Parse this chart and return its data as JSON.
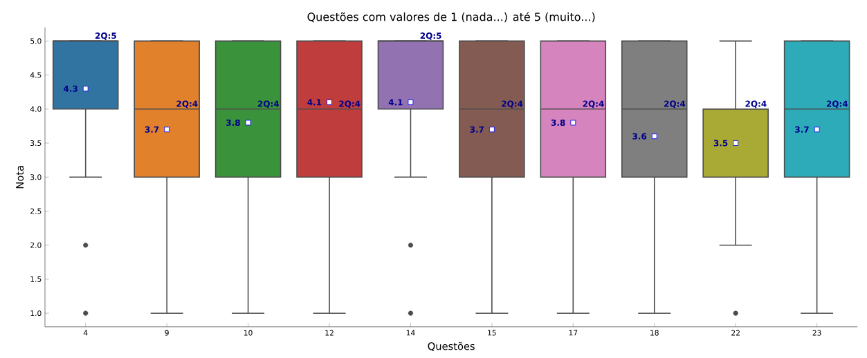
{
  "chart_data": {
    "type": "box",
    "title": "Questões com valores de 1 (nada...) até 5 (muito...)",
    "xlabel": "Questões",
    "ylabel": "Nota",
    "categories": [
      "4",
      "9",
      "10",
      "12",
      "14",
      "15",
      "17",
      "18",
      "22",
      "23"
    ],
    "colors": [
      "#3274a1",
      "#e1812c",
      "#3a923a",
      "#c03d3e",
      "#9372b2",
      "#845b53",
      "#d684bd",
      "#7f7f7f",
      "#a9aa35",
      "#2eabb8"
    ],
    "boxes": [
      {
        "low": 3,
        "q1": 4,
        "median": 5,
        "q3": 5,
        "high": 5,
        "mean": 4.3,
        "outliers": [
          2,
          1
        ]
      },
      {
        "low": 1,
        "q1": 3,
        "median": 4,
        "q3": 5,
        "high": 5,
        "mean": 3.7
      },
      {
        "low": 1,
        "q1": 3,
        "median": 4,
        "q3": 5,
        "high": 5,
        "mean": 3.8
      },
      {
        "low": 1,
        "q1": 3,
        "median": 4,
        "q3": 5,
        "high": 5,
        "mean": 4.1
      },
      {
        "low": 3,
        "q1": 4,
        "median": 5,
        "q3": 5,
        "high": 5,
        "mean": 4.1,
        "outliers": [
          2,
          1
        ]
      },
      {
        "low": 1,
        "q1": 3,
        "median": 4,
        "q3": 5,
        "high": 5,
        "mean": 3.7
      },
      {
        "low": 1,
        "q1": 3,
        "median": 4,
        "q3": 5,
        "high": 5,
        "mean": 3.8
      },
      {
        "low": 1,
        "q1": 3,
        "median": 4,
        "q3": 5,
        "high": 5,
        "mean": 3.6
      },
      {
        "low": 2,
        "q1": 3,
        "median": 4,
        "q3": 4,
        "high": 5,
        "mean": 3.5,
        "outliers": [
          1
        ]
      },
      {
        "low": 1,
        "q1": 3,
        "median": 4,
        "q3": 5,
        "high": 5,
        "mean": 3.7
      }
    ],
    "ylim": [
      0.8,
      5.2
    ],
    "yticks": [
      {
        "value": 1,
        "label": "1.0"
      },
      {
        "value": 1.5,
        "label": "1.5"
      },
      {
        "value": 2,
        "label": "2.0"
      },
      {
        "value": 2.5,
        "label": "2.5"
      },
      {
        "value": 3,
        "label": "3.0"
      },
      {
        "value": 3.5,
        "label": "3.5"
      },
      {
        "value": 4,
        "label": "4.0"
      },
      {
        "value": 4.5,
        "label": "4.5"
      },
      {
        "value": 5,
        "label": "5.0"
      }
    ],
    "grid": false,
    "annotations": [
      "4.3",
      "2Q:5",
      "3.7",
      "2Q:4",
      "3.8",
      "2Q:4",
      "4.1",
      "2Q:4",
      "4.1",
      "2Q:5",
      "3.7",
      "2Q:4",
      "3.8",
      "2Q:4",
      "3.6",
      "2Q:4",
      "3.5",
      "2Q:4",
      "3.7",
      "2Q:4"
    ]
  }
}
